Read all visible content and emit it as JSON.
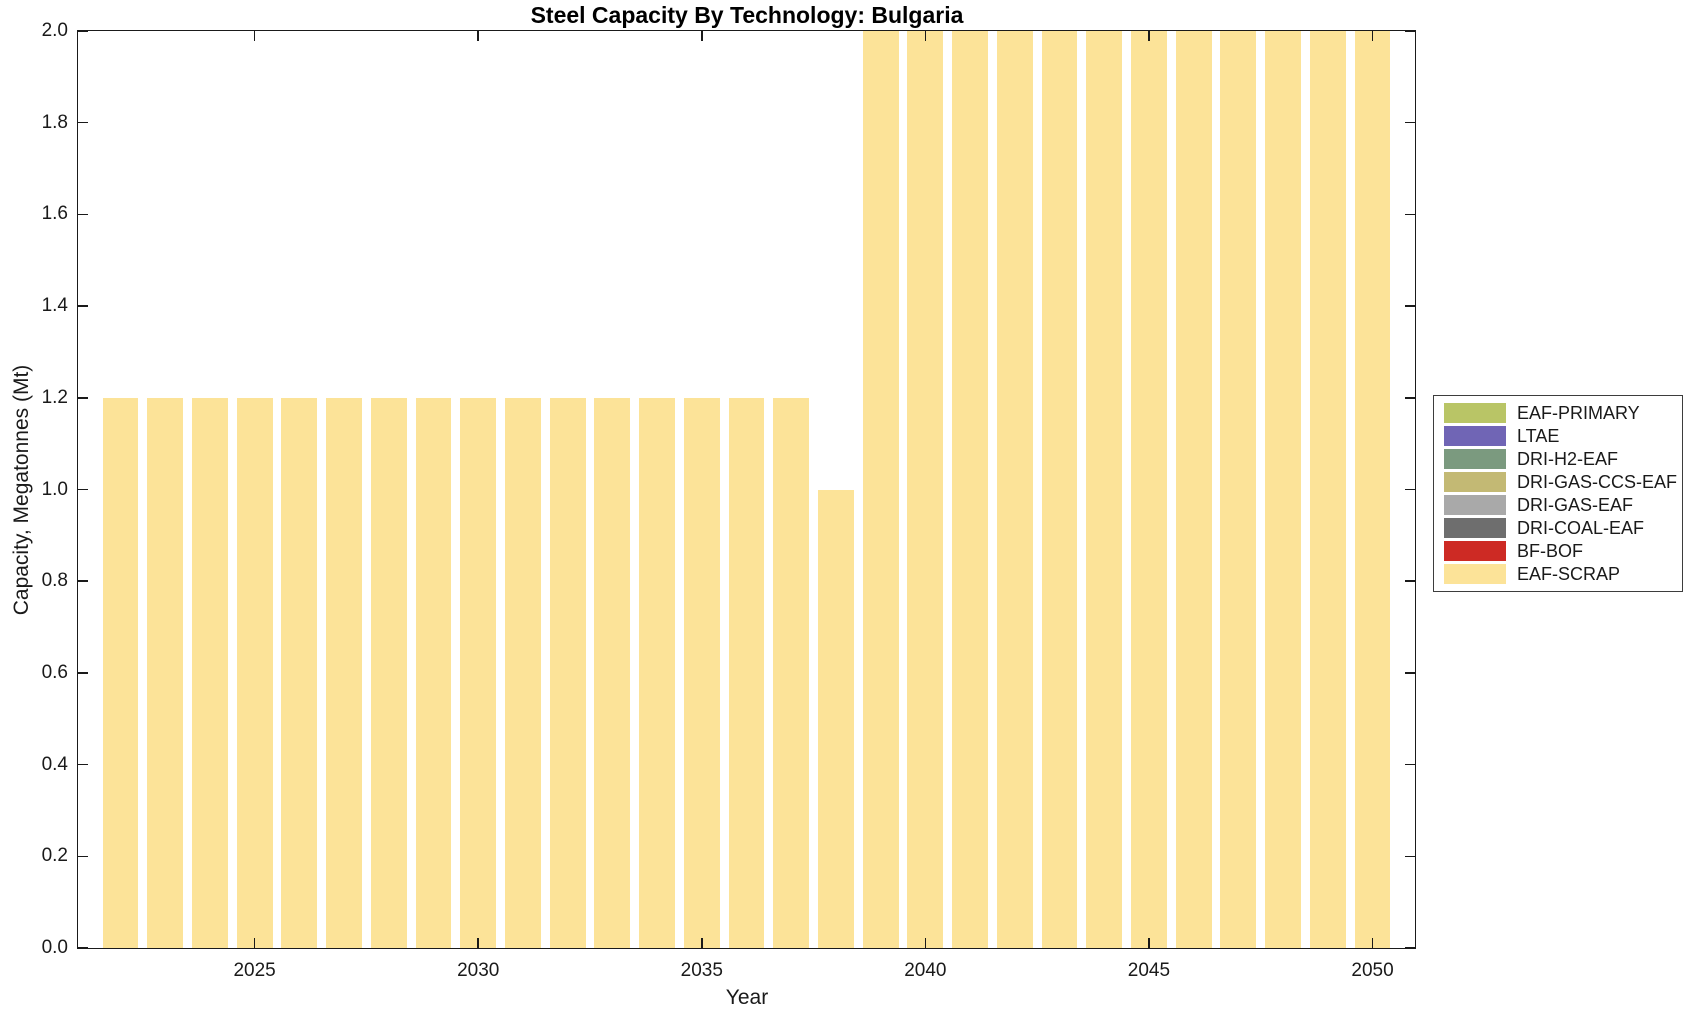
{
  "figure": {
    "title": "Steel Capacity By Technology: Bulgaria",
    "xlabel": "Year",
    "ylabel": "Capacity, Megatonnes (Mt)"
  },
  "legend": {
    "entries": [
      {
        "label": "EAF-PRIMARY",
        "color": "#b9c566"
      },
      {
        "label": "LTAE",
        "color": "#7065b5"
      },
      {
        "label": "DRI-H2-EAF",
        "color": "#7b9a7f"
      },
      {
        "label": "DRI-GAS-CCS-EAF",
        "color": "#c3b974"
      },
      {
        "label": "DRI-GAS-EAF",
        "color": "#a9a9a9"
      },
      {
        "label": "DRI-COAL-EAF",
        "color": "#6e6e6e"
      },
      {
        "label": "BF-BOF",
        "color": "#cd2a24"
      },
      {
        "label": "EAF-SCRAP",
        "color": "#fce398"
      }
    ]
  },
  "chart_data": {
    "type": "bar",
    "title": "Steel Capacity By Technology: Bulgaria",
    "xlabel": "Year",
    "ylabel": "Capacity, Megatonnes (Mt)",
    "x": [
      2022,
      2023,
      2024,
      2025,
      2026,
      2027,
      2028,
      2029,
      2030,
      2031,
      2032,
      2033,
      2034,
      2035,
      2036,
      2037,
      2038,
      2039,
      2040,
      2041,
      2042,
      2043,
      2044,
      2045,
      2046,
      2047,
      2048,
      2049,
      2050
    ],
    "series": [
      {
        "name": "EAF-SCRAP",
        "color": "#fce398",
        "values": [
          1.2,
          1.2,
          1.2,
          1.2,
          1.2,
          1.2,
          1.2,
          1.2,
          1.2,
          1.2,
          1.2,
          1.2,
          1.2,
          1.2,
          1.2,
          1.2,
          1.0,
          2.0,
          2.0,
          2.0,
          2.0,
          2.0,
          2.0,
          2.0,
          2.0,
          2.0,
          2.0,
          2.0,
          2.0
        ]
      }
    ],
    "zero_value_series": [
      "EAF-PRIMARY",
      "LTAE",
      "DRI-H2-EAF",
      "DRI-GAS-CCS-EAF",
      "DRI-GAS-EAF",
      "DRI-COAL-EAF",
      "BF-BOF"
    ],
    "bar_width": 0.8,
    "xlim": [
      2021.05,
      2050.95
    ],
    "ylim": [
      0,
      2.0
    ],
    "xticks": [
      2025,
      2030,
      2035,
      2040,
      2045,
      2050
    ],
    "ytick_labels": [
      "0.0",
      "0.2",
      "0.4",
      "0.6",
      "0.8",
      "1.0",
      "1.2",
      "1.4",
      "1.6",
      "1.8",
      "2.0"
    ],
    "grid": false,
    "legend_position": "outside-right"
  }
}
